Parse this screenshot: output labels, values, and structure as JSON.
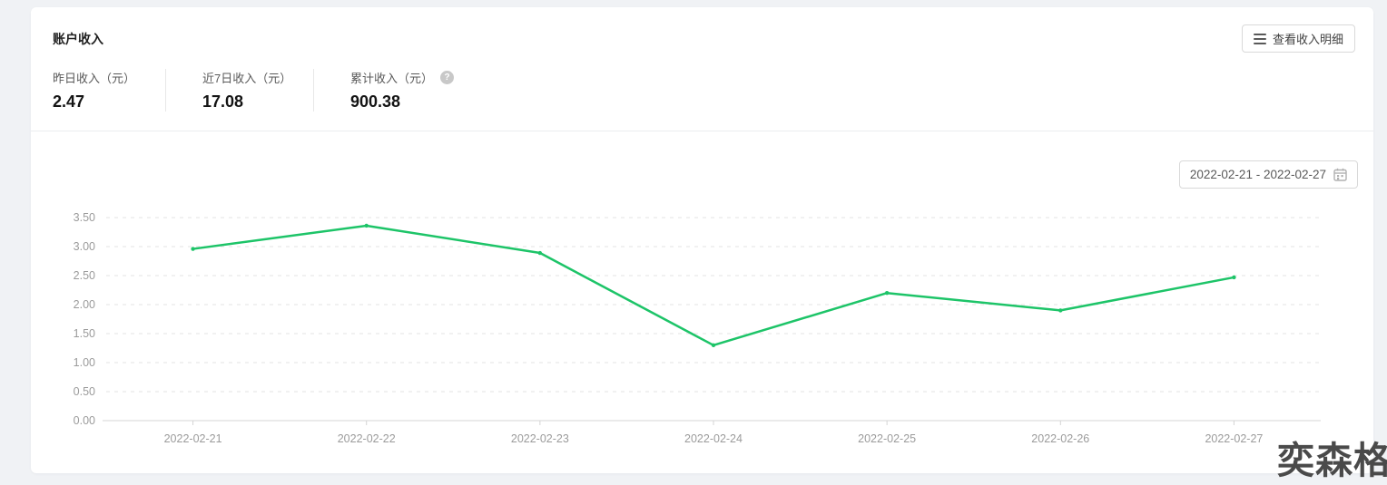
{
  "card": {
    "title": "账户收入",
    "details_button_label": "查看收入明细"
  },
  "stats": [
    {
      "label": "昨日收入（元）",
      "value": "2.47"
    },
    {
      "label": "近7日收入（元）",
      "value": "17.08"
    },
    {
      "label": "累计收入（元）",
      "value": "900.38"
    }
  ],
  "help_icon_glyph": "?",
  "date_range_picker": {
    "value": "2022-02-21 - 2022-02-27"
  },
  "watermark": "奕森格",
  "chart_data": {
    "type": "line",
    "title": "",
    "categories": [
      "2022-02-21",
      "2022-02-22",
      "2022-02-23",
      "2022-02-24",
      "2022-02-25",
      "2022-02-26",
      "2022-02-27"
    ],
    "values": [
      2.96,
      3.36,
      2.89,
      1.3,
      2.2,
      1.9,
      2.47
    ],
    "xlabel": "",
    "ylabel": "",
    "ylim": [
      0,
      3.5
    ],
    "ytick_step": 0.5,
    "ytick_format_decimals": 2,
    "line_color": "#1dc468",
    "grid": "horizontal dashed",
    "gridline_color": "#e3e3e3",
    "axis_line_color": "#d4d4d4",
    "axis_text_color": "#9b9b9b",
    "legend_position": "none"
  }
}
